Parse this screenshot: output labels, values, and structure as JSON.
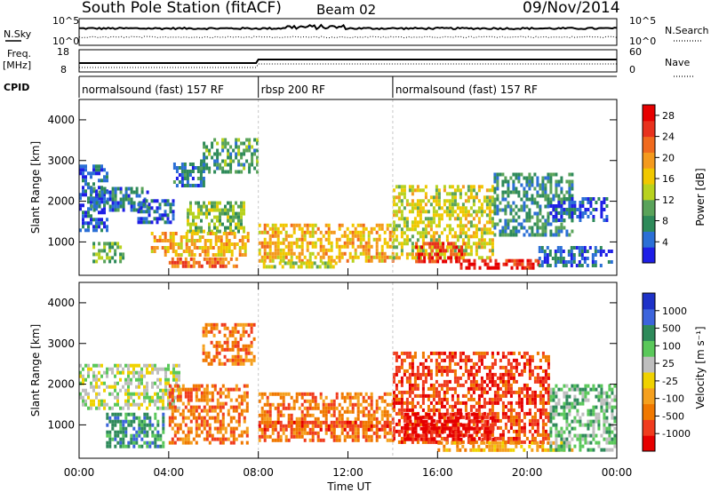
{
  "header": {
    "title": "South Pole Station (fitACF)",
    "beam": "Beam 02",
    "date": "09/Nov/2014"
  },
  "top_panels": {
    "nsky_label": "N.Sky",
    "nsky_ticks": [
      "10^5",
      "10^0"
    ],
    "nsearch_label": "N.Search",
    "nsearch_ticks": [
      "10^5",
      "10^0"
    ],
    "freq_label": "Freq.",
    "freq_unit": "[MHz]",
    "freq_ticks": [
      "18",
      "8"
    ],
    "nave_label": "Nave",
    "nave_ticks": [
      "60",
      "0"
    ],
    "cpid_label": "CPID"
  },
  "cpid_segments": [
    {
      "label": "normalsound (fast) 157 RF",
      "start_h": 0,
      "end_h": 8
    },
    {
      "label": "rbsp 200 RF",
      "start_h": 8,
      "end_h": 14
    },
    {
      "label": "normalsound (fast) 157 RF",
      "start_h": 14,
      "end_h": 24
    }
  ],
  "colors": {
    "power": [
      "#1e1ee6",
      "#2b6fd6",
      "#2e8a5a",
      "#5aa35a",
      "#b8d21e",
      "#f0c800",
      "#f49a1e",
      "#f06a1e",
      "#e8321e",
      "#e60000"
    ],
    "velocity": [
      "#1e32c8",
      "#3c64dc",
      "#2e8a5a",
      "#5ac85a",
      "#bebebe",
      "#f0d200",
      "#f5a01e",
      "#f07800",
      "#f03c1e",
      "#e60000"
    ]
  },
  "chart_data": [
    {
      "type": "heatmap",
      "name": "power",
      "ylabel": "Slant Range [km]",
      "xlabel": "",
      "x_range_hours": [
        0,
        24
      ],
      "ylim": [
        180,
        4500
      ],
      "yticks": [
        "1000",
        "2000",
        "3000",
        "4000"
      ],
      "xticks": [
        "00:00",
        "04:00",
        "08:00",
        "12:00",
        "16:00",
        "20:00",
        "00:00"
      ],
      "colorbar": {
        "label": "Power [dB]",
        "ticks": [
          "4",
          "8",
          "12",
          "16",
          "20",
          "24",
          "28"
        ],
        "range": [
          0,
          30
        ]
      },
      "regions": [
        {
          "t0": 0.0,
          "t1": 1.3,
          "r0": 1300,
          "r1": 2900,
          "v": 4
        },
        {
          "t0": 0.5,
          "t1": 3.0,
          "r0": 1750,
          "r1": 2350,
          "v": 6
        },
        {
          "t0": 0.6,
          "t1": 2.0,
          "r0": 500,
          "r1": 1000,
          "v": 10
        },
        {
          "t0": 2.6,
          "t1": 4.2,
          "r0": 1450,
          "r1": 2050,
          "v": 5
        },
        {
          "t0": 4.2,
          "t1": 5.6,
          "r0": 2400,
          "r1": 2950,
          "v": 6
        },
        {
          "t0": 5.4,
          "t1": 8.0,
          "r0": 2700,
          "r1": 3550,
          "v": 9
        },
        {
          "t0": 4.8,
          "t1": 7.4,
          "r0": 1300,
          "r1": 2000,
          "v": 12
        },
        {
          "t0": 3.2,
          "t1": 7.6,
          "r0": 650,
          "r1": 1250,
          "v": 18
        },
        {
          "t0": 4.0,
          "t1": 7.0,
          "r0": 420,
          "r1": 620,
          "v": 22
        },
        {
          "t0": 8.0,
          "t1": 14.0,
          "r0": 550,
          "r1": 1450,
          "v": 18
        },
        {
          "t0": 8.2,
          "t1": 11.5,
          "r0": 380,
          "r1": 520,
          "v": 14
        },
        {
          "t0": 14.0,
          "t1": 18.5,
          "r0": 650,
          "r1": 2400,
          "v": 15
        },
        {
          "t0": 15.0,
          "t1": 17.2,
          "r0": 550,
          "r1": 1000,
          "v": 26
        },
        {
          "t0": 17.0,
          "t1": 20.5,
          "r0": 330,
          "r1": 580,
          "v": 27
        },
        {
          "t0": 18.5,
          "t1": 22.0,
          "r0": 1200,
          "r1": 2700,
          "v": 8
        },
        {
          "t0": 21.0,
          "t1": 23.5,
          "r0": 1500,
          "r1": 2100,
          "v": 4
        },
        {
          "t0": 20.5,
          "t1": 23.8,
          "r0": 380,
          "r1": 900,
          "v": 5
        }
      ]
    },
    {
      "type": "heatmap",
      "name": "velocity",
      "ylabel": "Slant Range [km]",
      "xlabel": "Time UT",
      "x_range_hours": [
        0,
        24
      ],
      "ylim": [
        180,
        4500
      ],
      "yticks": [
        "1000",
        "2000",
        "3000",
        "4000"
      ],
      "xticks": [
        "00:00",
        "04:00",
        "08:00",
        "12:00",
        "16:00",
        "20:00",
        "00:00"
      ],
      "colorbar": {
        "label": "Velocity [m s⁻¹]",
        "ticks": [
          "1000",
          "500",
          "100",
          "25",
          "-25",
          "-100",
          "-500",
          "-1000"
        ]
      },
      "regions": [
        {
          "t0": 0.0,
          "t1": 4.5,
          "r0": 1450,
          "r1": 2500,
          "v": 4
        },
        {
          "t0": 1.2,
          "t1": 3.8,
          "r0": 500,
          "r1": 1300,
          "v": 2
        },
        {
          "t0": 4.0,
          "t1": 7.5,
          "r0": 600,
          "r1": 2000,
          "v": 7
        },
        {
          "t0": 5.5,
          "t1": 7.8,
          "r0": 2500,
          "r1": 3500,
          "v": 7
        },
        {
          "t0": 8.0,
          "t1": 14.0,
          "r0": 600,
          "r1": 1800,
          "v": 7
        },
        {
          "t0": 8.0,
          "t1": 14.0,
          "r0": 900,
          "r1": 1100,
          "v": 8
        },
        {
          "t0": 14.0,
          "t1": 21.0,
          "r0": 600,
          "r1": 2800,
          "v": 8
        },
        {
          "t0": 14.5,
          "t1": 18.5,
          "r0": 650,
          "r1": 1300,
          "v": 9
        },
        {
          "t0": 16.0,
          "t1": 22.0,
          "r0": 350,
          "r1": 600,
          "v": 6
        },
        {
          "t0": 21.0,
          "t1": 24.0,
          "r0": 400,
          "r1": 2000,
          "v": 3
        }
      ]
    }
  ]
}
